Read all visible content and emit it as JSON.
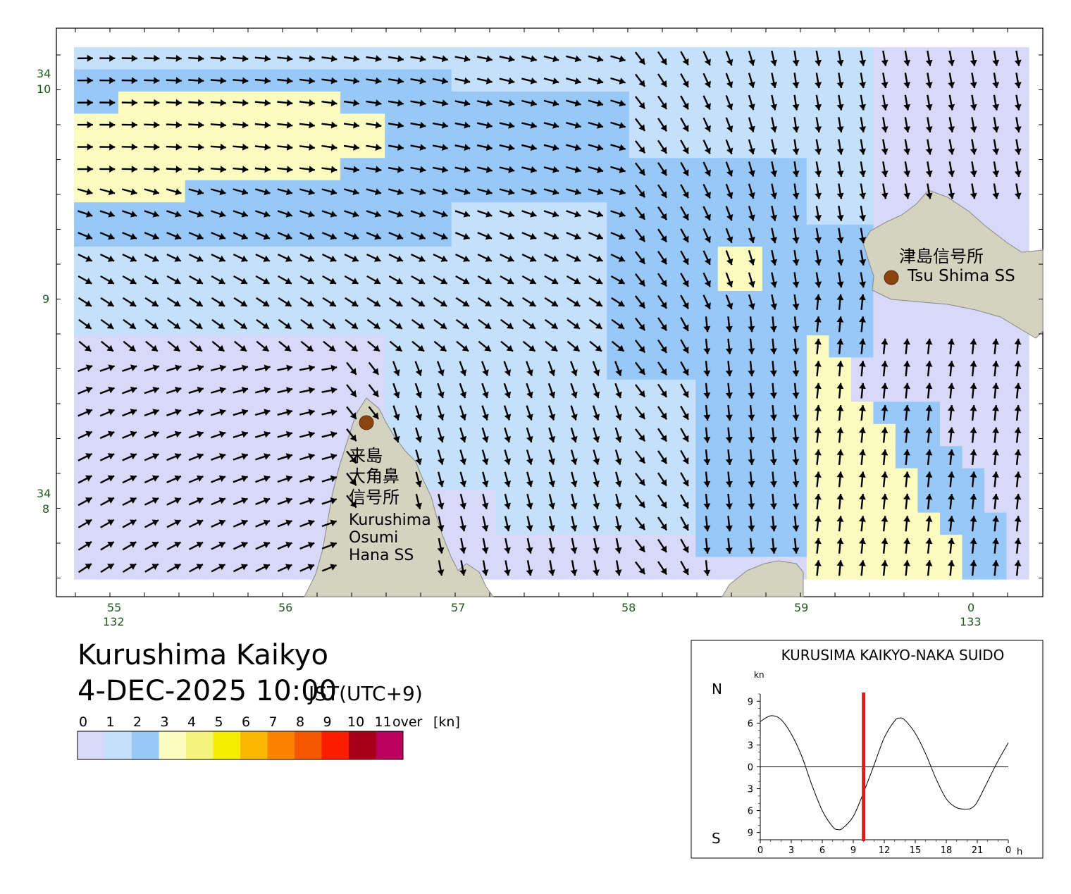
{
  "map": {
    "title": "Kurushima Kaikyo",
    "datetime": "4-DEC-2025 10:00",
    "timezone": "JST(UTC+9)",
    "lat_labels": [
      {
        "deg": "34",
        "min": "10"
      },
      {
        "min": "9"
      },
      {
        "deg": "34",
        "min": "8"
      }
    ],
    "lon_labels": [
      {
        "min": "55",
        "deg": "132"
      },
      {
        "min": "56"
      },
      {
        "min": "57"
      },
      {
        "min": "58"
      },
      {
        "min": "59"
      },
      {
        "min": "0",
        "deg": "133"
      }
    ],
    "stations": [
      {
        "name_ja": "津島信号所",
        "name_en": "Tsu Shima SS"
      },
      {
        "name_ja_lines": [
          "来島",
          "大角鼻",
          "信号所"
        ],
        "name_en_lines": [
          "Kurushima",
          "Osumi",
          "Hana SS"
        ]
      }
    ],
    "colors": {
      "land": "#d4d3c0",
      "station_marker": "#8b4513",
      "arrow": "#000000",
      "frame": "#000000"
    }
  },
  "legend": {
    "labels": [
      "0",
      "1",
      "2",
      "3",
      "4",
      "5",
      "6",
      "7",
      "8",
      "9",
      "10",
      "11",
      "over",
      "[kn]"
    ],
    "colors": [
      "#d8d8f8",
      "#c4e0fa",
      "#98c8f8",
      "#fcfcc0",
      "#f4f47c",
      "#f6ee00",
      "#fcb800",
      "#fc8400",
      "#f45800",
      "#fc1c00",
      "#a80018",
      "#b8005c"
    ]
  },
  "chart_data": {
    "type": "line",
    "title": "KURUSIMA KAIKYO-NAKA SUIDO",
    "ylabel": "kn",
    "xlabel": "h",
    "direction_top": "N",
    "direction_bottom": "S",
    "xlim": [
      0,
      24
    ],
    "ylim": [
      -10,
      10
    ],
    "xticks": [
      "0",
      "3",
      "6",
      "9",
      "12",
      "15",
      "18",
      "21",
      "0"
    ],
    "yticks": [
      "9",
      "6",
      "3",
      "0",
      "3",
      "6",
      "9"
    ],
    "current_time_hour": 10,
    "series": [
      {
        "x": [
          0,
          1,
          2,
          3,
          4,
          5,
          6,
          7,
          7.5,
          8,
          9,
          10,
          11,
          12,
          13,
          13.5,
          14,
          15,
          16,
          17,
          18,
          19,
          20,
          20.5,
          21,
          22,
          23,
          24
        ],
        "values": [
          6.2,
          7.0,
          6.5,
          4.5,
          1.5,
          -2.5,
          -6.0,
          -8.2,
          -8.6,
          -8.4,
          -6.8,
          -3.5,
          0.2,
          4.0,
          6.3,
          6.7,
          6.4,
          4.6,
          1.8,
          -1.6,
          -4.4,
          -5.6,
          -5.8,
          -5.6,
          -4.8,
          -2.0,
          0.8,
          3.3
        ]
      }
    ]
  }
}
